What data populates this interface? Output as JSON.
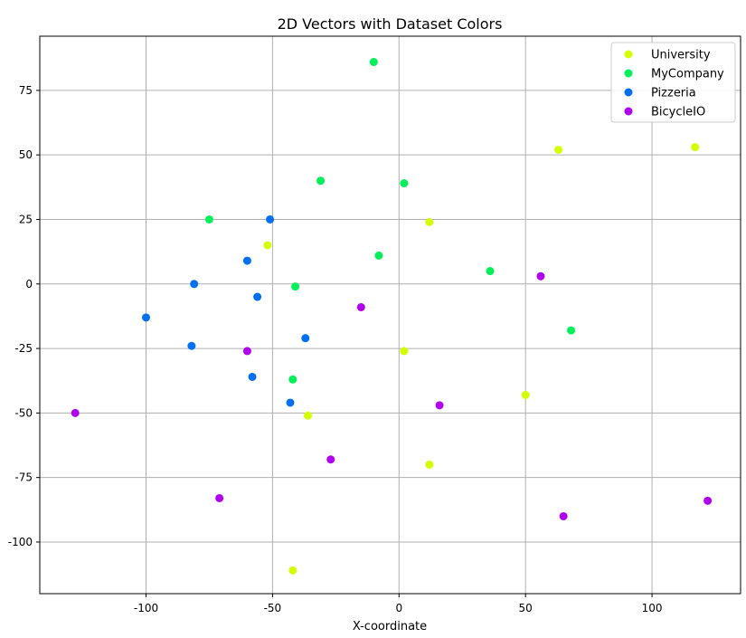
{
  "chart_data": {
    "type": "scatter",
    "title": "2D Vectors with Dataset Colors",
    "xlabel": "X-coordinate",
    "ylabel": "",
    "xlim": [
      -142,
      135
    ],
    "ylim": [
      -120,
      96
    ],
    "xticks": [
      -100,
      -50,
      0,
      50,
      100
    ],
    "yticks": [
      -100,
      -75,
      -50,
      -25,
      0,
      25,
      50,
      75
    ],
    "grid": true,
    "legend_position": "top-right",
    "series": [
      {
        "name": "University",
        "color": "#d4ff00",
        "points": [
          [
            63,
            52
          ],
          [
            117,
            53
          ],
          [
            12,
            24
          ],
          [
            -52,
            15
          ],
          [
            2,
            -26
          ],
          [
            50,
            -43
          ],
          [
            -36,
            -51
          ],
          [
            12,
            -70
          ],
          [
            -42,
            -111
          ]
        ]
      },
      {
        "name": "MyCompany",
        "color": "#00f05a",
        "points": [
          [
            -10,
            86
          ],
          [
            -31,
            40
          ],
          [
            2,
            39
          ],
          [
            -75,
            25
          ],
          [
            -8,
            11
          ],
          [
            36,
            5
          ],
          [
            -41,
            -1
          ],
          [
            68,
            -18
          ],
          [
            -42,
            -37
          ]
        ]
      },
      {
        "name": "Pizzeria",
        "color": "#0070f0",
        "points": [
          [
            -51,
            25
          ],
          [
            -60,
            9
          ],
          [
            -81,
            0
          ],
          [
            -56,
            -5
          ],
          [
            -100,
            -13
          ],
          [
            -37,
            -21
          ],
          [
            -82,
            -24
          ],
          [
            -58,
            -36
          ],
          [
            -43,
            -46
          ]
        ]
      },
      {
        "name": "BicycleIO",
        "color": "#b000f0",
        "points": [
          [
            56,
            3
          ],
          [
            -15,
            -9
          ],
          [
            -60,
            -26
          ],
          [
            16,
            -47
          ],
          [
            -128,
            -50
          ],
          [
            -27,
            -68
          ],
          [
            -71,
            -83
          ],
          [
            122,
            -84
          ],
          [
            65,
            -90
          ]
        ]
      }
    ]
  }
}
